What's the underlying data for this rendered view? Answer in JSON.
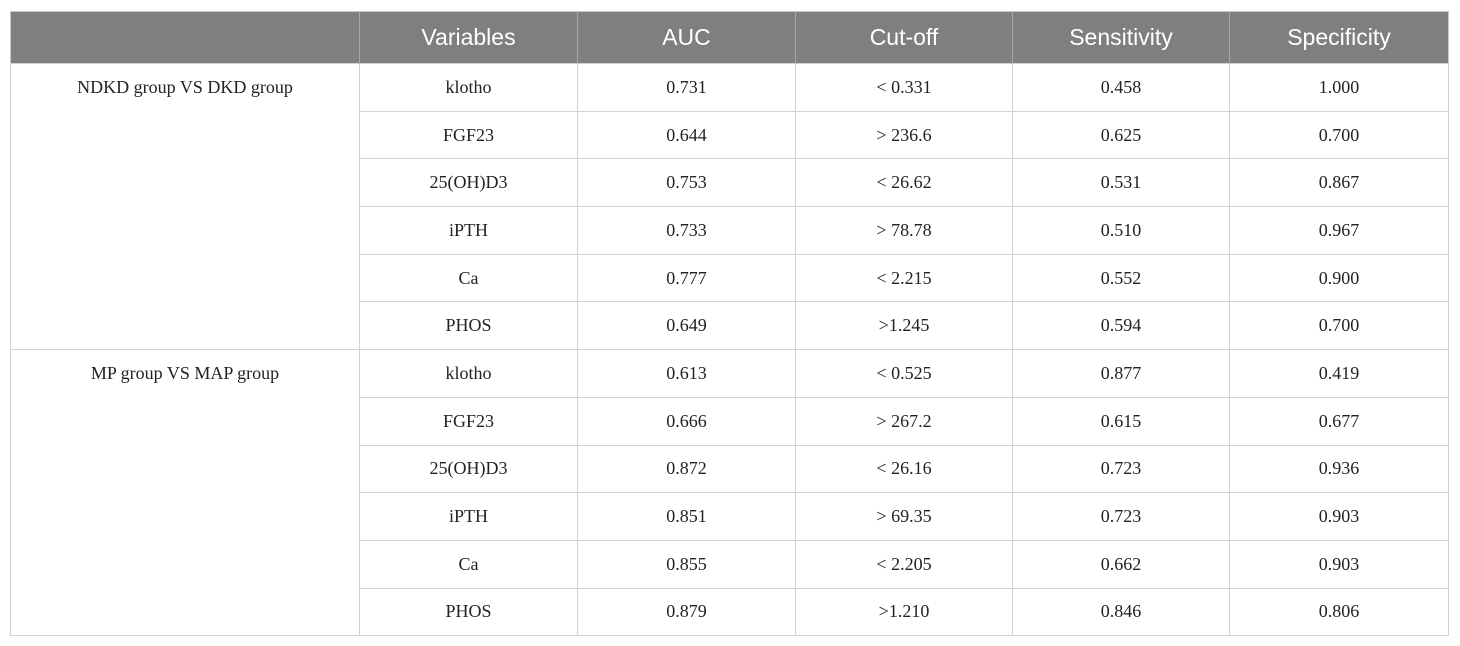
{
  "table": {
    "columns": [
      "Variables",
      "AUC",
      "Cut-off",
      "Sensitivity",
      "Specificity"
    ],
    "groups": [
      {
        "label": "NDKD group VS DKD group",
        "rows": [
          [
            "klotho",
            "0.731",
            "< 0.331",
            "0.458",
            "1.000"
          ],
          [
            "FGF23",
            "0.644",
            "> 236.6",
            "0.625",
            "0.700"
          ],
          [
            "25(OH)D3",
            "0.753",
            "< 26.62",
            "0.531",
            "0.867"
          ],
          [
            "iPTH",
            "0.733",
            "> 78.78",
            "0.510",
            "0.967"
          ],
          [
            "Ca",
            "0.777",
            "< 2.215",
            "0.552",
            "0.900"
          ],
          [
            "PHOS",
            "0.649",
            ">1.245",
            "0.594",
            "0.700"
          ]
        ]
      },
      {
        "label": "MP group VS MAP group",
        "rows": [
          [
            "klotho",
            "0.613",
            "< 0.525",
            "0.877",
            "0.419"
          ],
          [
            "FGF23",
            "0.666",
            "> 267.2",
            "0.615",
            "0.677"
          ],
          [
            "25(OH)D3",
            "0.872",
            "< 26.16",
            "0.723",
            "0.936"
          ],
          [
            "iPTH",
            "0.851",
            "> 69.35",
            "0.723",
            "0.903"
          ],
          [
            "Ca",
            "0.855",
            "< 2.205",
            "0.662",
            "0.903"
          ],
          [
            "PHOS",
            "0.879",
            ">1.210",
            "0.846",
            "0.806"
          ]
        ]
      }
    ]
  }
}
